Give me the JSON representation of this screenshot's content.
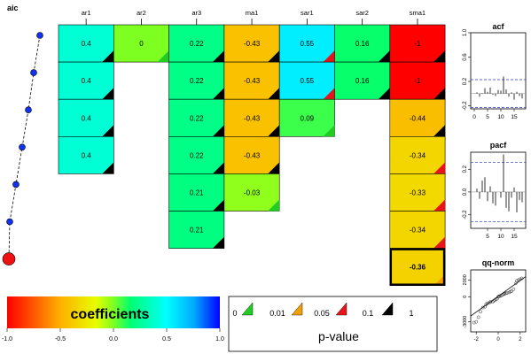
{
  "chart_data": [
    {
      "type": "heatmap",
      "aic_label": "aic",
      "columns": [
        "ar1",
        "ar2",
        "ar3",
        "ma1",
        "sar1",
        "sar2",
        "sma1"
      ],
      "rows": [
        [
          "0.4",
          "0",
          "0.22",
          "-0.43",
          "0.55",
          "0.16",
          "-1"
        ],
        [
          "0.4",
          "",
          "0.22",
          "-0.43",
          "0.55",
          "0.16",
          "-1"
        ],
        [
          "0.4",
          "",
          "0.22",
          "-0.43",
          "0.09",
          "",
          "-0.44"
        ],
        [
          "0.4",
          "",
          "0.22",
          "-0.43",
          "",
          "",
          "-0.34"
        ],
        [
          "",
          "",
          "0.21",
          "-0.03",
          "",
          "",
          "-0.33"
        ],
        [
          "",
          "",
          "0.21",
          "",
          "",
          "",
          "-0.34"
        ],
        [
          "",
          "",
          "",
          "",
          "",
          "",
          "-0.36"
        ]
      ],
      "values": [
        [
          0.4,
          0,
          0.22,
          -0.43,
          0.55,
          0.16,
          -1
        ],
        [
          0.4,
          null,
          0.22,
          -0.43,
          0.55,
          0.16,
          -1
        ],
        [
          0.4,
          null,
          0.22,
          -0.43,
          0.09,
          null,
          -0.44
        ],
        [
          0.4,
          null,
          0.22,
          -0.43,
          null,
          null,
          -0.34
        ],
        [
          null,
          null,
          0.21,
          -0.03,
          null,
          null,
          -0.33
        ],
        [
          null,
          null,
          0.21,
          null,
          null,
          null,
          -0.34
        ],
        [
          null,
          null,
          null,
          null,
          null,
          null,
          -0.36
        ]
      ],
      "pvalue_class": [
        [
          3,
          4,
          3,
          3,
          2,
          3,
          3
        ],
        [
          3,
          0,
          3,
          3,
          2,
          3,
          3
        ],
        [
          3,
          0,
          3,
          3,
          4,
          0,
          3
        ],
        [
          3,
          0,
          3,
          3,
          0,
          0,
          2
        ],
        [
          0,
          0,
          3,
          4,
          0,
          0,
          2
        ],
        [
          0,
          0,
          3,
          0,
          0,
          0,
          2
        ],
        [
          0,
          0,
          0,
          0,
          0,
          0,
          1
        ]
      ],
      "best_row": 7,
      "aic_rank": [
        1,
        2,
        3,
        4,
        5,
        6,
        7
      ]
    },
    {
      "type": "bar",
      "title": "acf",
      "lags": [
        1,
        2,
        3,
        4,
        5,
        6,
        7,
        8,
        9,
        10,
        11,
        12,
        13,
        14,
        15,
        16,
        17,
        18
      ],
      "values": [
        0.02,
        -0.05,
        0.01,
        0.09,
        0.03,
        0.1,
        -0.02,
        -0.04,
        0.06,
        0.05,
        0.28,
        0.07,
        -0.05,
        0.02,
        -0.1,
        0.03,
        -0.04,
        -0.08
      ],
      "ci": 0.23,
      "ylim": [
        -0.25,
        1.0
      ],
      "yticks": [
        "-0.2",
        "0.2",
        "0.6",
        "1.0"
      ],
      "xticks": [
        "0",
        "5",
        "10",
        "15"
      ]
    },
    {
      "type": "bar",
      "title": "pacf",
      "lags": [
        1,
        2,
        3,
        4,
        5,
        6,
        7,
        8,
        9,
        10,
        11,
        12,
        13,
        14,
        15,
        16,
        17,
        18
      ],
      "values": [
        0.03,
        -0.06,
        0.1,
        0.13,
        -0.08,
        0.05,
        -0.1,
        -0.12,
        0.0,
        -0.05,
        0.33,
        -0.14,
        -0.17,
        -0.05,
        0.04,
        -0.18,
        -0.07,
        -0.09
      ],
      "ci": 0.26,
      "ylim": [
        -0.32,
        0.35
      ],
      "yticks": [
        "-0.2",
        "0.0",
        "0.2"
      ],
      "xticks": [
        "5",
        "10",
        "15"
      ]
    },
    {
      "type": "scatter",
      "title": "qq-norm",
      "xlim": [
        -2.5,
        2.5
      ],
      "ylim": [
        -4200,
        3200
      ],
      "xticks": [
        "-2",
        "0",
        "2"
      ],
      "yticks": [
        "-3000",
        "0",
        "2000"
      ],
      "line": [
        [
          -2.5,
          -2300
        ],
        [
          2.5,
          2400
        ]
      ],
      "points": [
        [
          -2.2,
          -3100
        ],
        [
          -2.0,
          -3000
        ],
        [
          -1.8,
          -2450
        ],
        [
          -1.6,
          -1800
        ],
        [
          -1.4,
          -1300
        ],
        [
          -1.2,
          -1200
        ],
        [
          -1.1,
          -900
        ],
        [
          -1.0,
          -800
        ],
        [
          -0.8,
          -700
        ],
        [
          -0.7,
          -600
        ],
        [
          -0.5,
          -600
        ],
        [
          -0.4,
          -500
        ],
        [
          -0.3,
          -400
        ],
        [
          -0.2,
          -300
        ],
        [
          -0.1,
          -250
        ],
        [
          0.0,
          0
        ],
        [
          0.1,
          50
        ],
        [
          0.2,
          100
        ],
        [
          0.3,
          150
        ],
        [
          0.4,
          250
        ],
        [
          0.5,
          300
        ],
        [
          0.6,
          350
        ],
        [
          0.7,
          400
        ],
        [
          0.8,
          450
        ],
        [
          1.0,
          500
        ],
        [
          1.1,
          600
        ],
        [
          1.2,
          650
        ],
        [
          1.4,
          900
        ],
        [
          1.6,
          1600
        ],
        [
          1.7,
          1900
        ],
        [
          1.85,
          2000
        ],
        [
          2.0,
          2100
        ],
        [
          2.15,
          2200
        ]
      ]
    },
    {
      "type": "colorbar",
      "label": "coefficients",
      "range": [
        -1.0,
        1.0
      ],
      "ticks": [
        "-1.0",
        "-0.5",
        "0.0",
        "0.5",
        "1.0"
      ]
    },
    {
      "type": "legend",
      "title": "p-value",
      "items": [
        "0",
        "0.01",
        "0.05",
        "0.1",
        "1"
      ],
      "colors": [
        "#22cc22",
        "#f0a000",
        "#e8141c",
        "#000000"
      ]
    }
  ]
}
